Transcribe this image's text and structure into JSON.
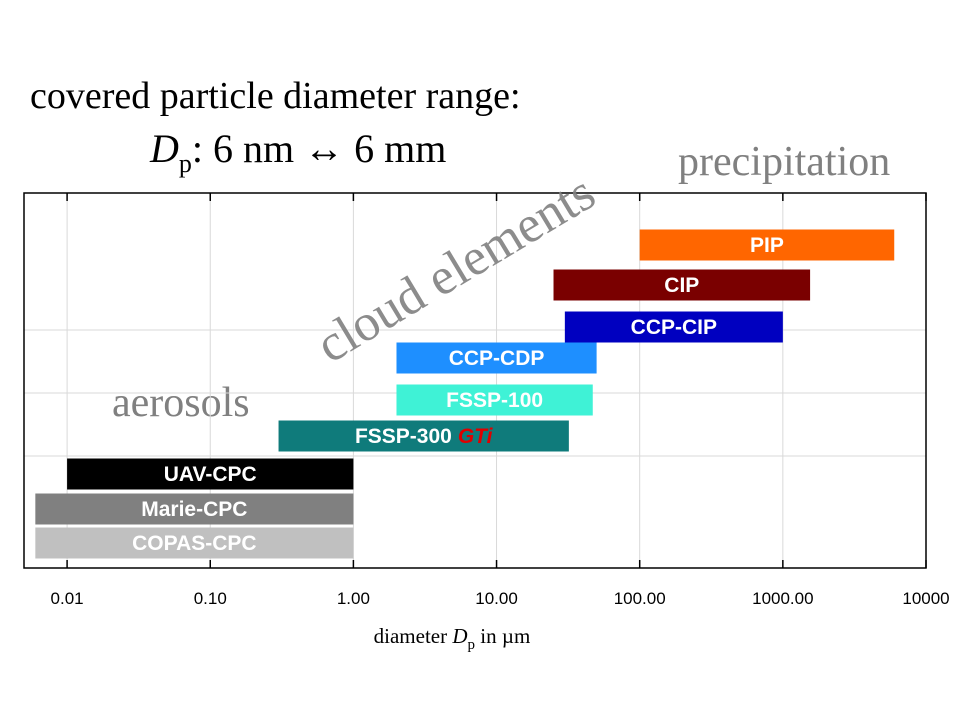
{
  "chart_data": {
    "type": "range-bar",
    "title": "covered particle diameter range:",
    "subtitle": {
      "symbol": "D",
      "subscript": "p",
      "rest": ": 6 nm ↔ 6 mm"
    },
    "x_label": {
      "before": "diameter ",
      "symbol": "D",
      "subscript": "p",
      "after": " in µm"
    },
    "annotations": {
      "precipitation": "precipitation",
      "cloud": "cloud elements",
      "aerosols": "aerosols"
    },
    "x_log": true,
    "grid": true,
    "xlim": [
      0.005,
      10000
    ],
    "xticks": [
      0.01,
      {
        "value": 0.1,
        "label": "0.10"
      },
      {
        "value": 1,
        "label": "1.00"
      },
      {
        "value": 10,
        "label": "10.00"
      },
      {
        "value": 100,
        "label": "100.00"
      },
      {
        "value": 1000,
        "label": "1000.00"
      },
      10000
    ],
    "bars": [
      {
        "name": "PIP",
        "start": 100,
        "end": 6000,
        "color": "#ff6600"
      },
      {
        "name": "CIP",
        "start": 25,
        "end": 1550,
        "color": "#7a0000"
      },
      {
        "name": "CCP-CIP",
        "start": 30,
        "end": 1000,
        "color": "#0000c0"
      },
      {
        "name": "CCP-CDP",
        "start": 2,
        "end": 50,
        "color": "#1e8fff"
      },
      {
        "name": "FSSP-100",
        "start": 2,
        "end": 47,
        "color": "#3ff2d6"
      },
      {
        "name": "FSSP-300",
        "suffix": "GTi",
        "suffix_color": "#e00000",
        "start": 0.3,
        "end": 32,
        "color": "#0f7b7b"
      },
      {
        "name": "UAV-CPC",
        "start": 0.01,
        "end": 1,
        "color": "#000000"
      },
      {
        "name": "Marie-CPC",
        "start": 0.006,
        "end": 1,
        "color": "#808080"
      },
      {
        "name": "COPAS-CPC",
        "start": 0.006,
        "end": 1,
        "color": "#c0c0c0"
      }
    ]
  }
}
